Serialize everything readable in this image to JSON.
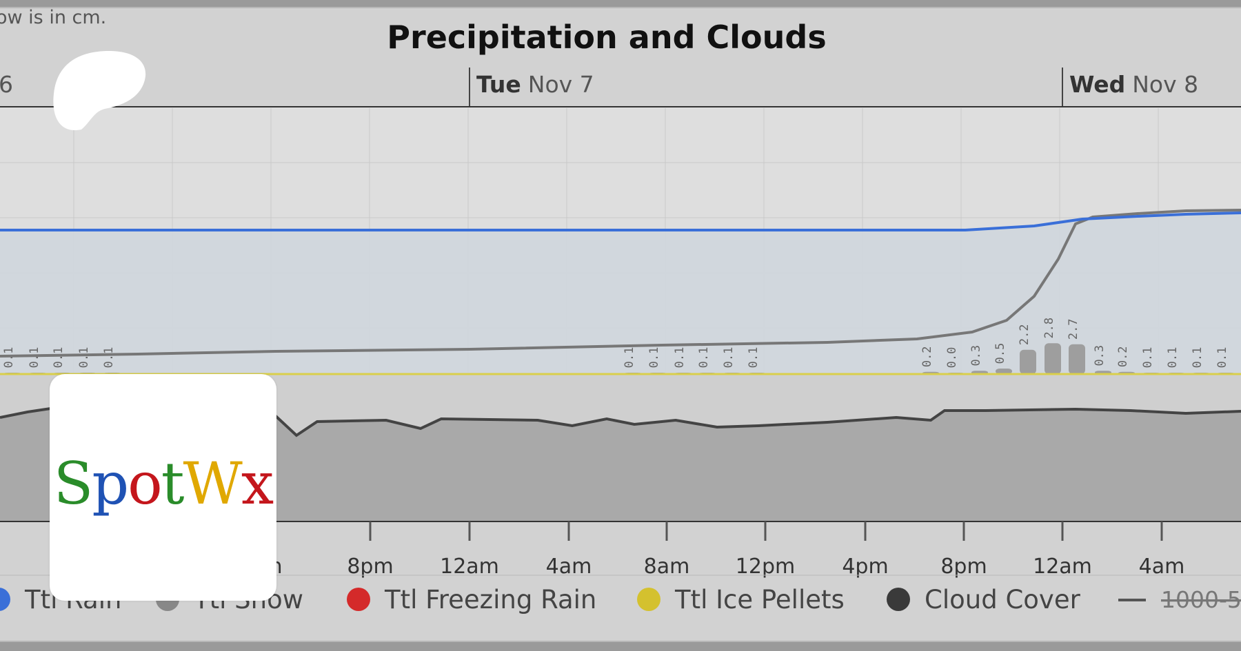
{
  "header_note": "ow is in cm.",
  "chart_data": {
    "type": "line",
    "title": "Precipitation and Clouds",
    "days": [
      {
        "weekday": "",
        "date": "6"
      },
      {
        "weekday": "Tue",
        "date": "Nov 7"
      },
      {
        "weekday": "Wed",
        "date": "Nov 8"
      }
    ],
    "x_ticks": [
      "m",
      "8pm",
      "12am",
      "4am",
      "8am",
      "12pm",
      "4pm",
      "8pm",
      "12am",
      "4am"
    ],
    "series": [
      {
        "name": "Ttl Rain",
        "color": "#3a6fd8"
      },
      {
        "name": "Ttl Snow",
        "color": "#888888"
      },
      {
        "name": "Ttl Freezing Rain",
        "color": "#d42a2a"
      },
      {
        "name": "Ttl Ice Pellets",
        "color": "#d4c12e"
      },
      {
        "name": "Cloud Cover",
        "color": "#3a3a3a"
      }
    ],
    "legend_extra": "1000-5",
    "snow_bar_labels": [
      "0.1",
      "0.1",
      "0.1",
      "0.1",
      "0.1",
      "0.1",
      "0.1",
      "0.1",
      "0.1",
      "0.1",
      "0.1",
      "0.2",
      "0.0",
      "0.3",
      "0.5",
      "2.2",
      "2.8",
      "2.7",
      "0.3",
      "0.2",
      "0.1",
      "0.1",
      "0.1",
      "0.1"
    ],
    "grid": true,
    "legend_position": "bottom"
  },
  "logos": {
    "patreon": "patreon-icon",
    "spotwx": {
      "parts": [
        "S",
        "p",
        "o",
        "t",
        "W",
        "x"
      ]
    }
  }
}
